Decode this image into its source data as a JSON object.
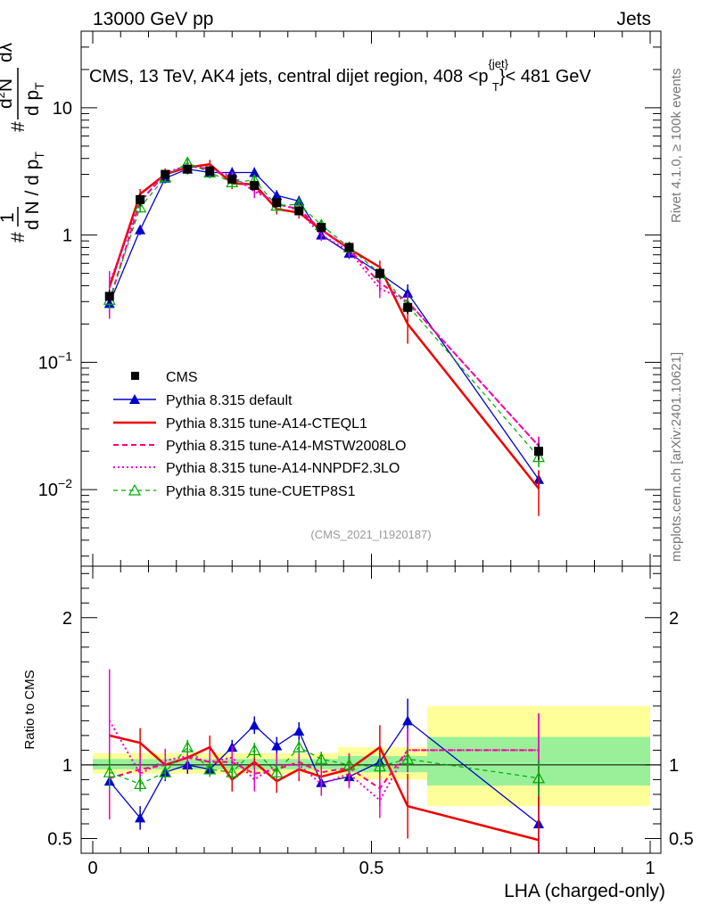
{
  "header": {
    "left": "13000 GeV pp",
    "right": "Jets"
  },
  "side_labels": {
    "rivet": "Rivet 4.1.0, ≥ 100k events",
    "mcplots": "mcplots.cern.ch [arXiv:2401.10621]"
  },
  "watermark": "(CMS_2021_I1920187)",
  "chart_data": {
    "type": "line",
    "title_parts": {
      "prefix": "CMS, 13 TeV, AK4 jets, central dijet region, 408 <p",
      "sup": "{jet}",
      "sub": "T",
      "suffix": "}< 481 GeV"
    },
    "xlabel": "LHA (charged-only)",
    "xlim": [
      0,
      1
    ],
    "x_ticks": [
      "0",
      "0.5",
      "1"
    ],
    "ylabel_parts": [
      "#",
      "1",
      "d N / d p",
      "T",
      "#",
      "d p",
      "T",
      "d",
      "2",
      "N",
      "dλ"
    ],
    "y_scale": "log",
    "ylim": [
      0.0025,
      40
    ],
    "y_ticks": [
      {
        "v": 10,
        "base": "10",
        "exp": ""
      },
      {
        "v": 1,
        "base": "1",
        "exp": ""
      },
      {
        "v": 0.1,
        "base": "10",
        "exp": "−1"
      },
      {
        "v": 0.01,
        "base": "10",
        "exp": "−2"
      }
    ],
    "x": [
      0.03,
      0.085,
      0.13,
      0.17,
      0.21,
      0.25,
      0.29,
      0.33,
      0.37,
      0.41,
      0.46,
      0.515,
      0.565,
      0.8
    ],
    "series": [
      {
        "name": "CMS",
        "style": "data",
        "color": "#000000",
        "values": [
          0.33,
          1.9,
          3.0,
          3.3,
          3.2,
          2.75,
          2.45,
          1.8,
          1.55,
          1.15,
          0.8,
          0.5,
          0.27,
          0.02
        ],
        "errors": [
          0.04,
          0.2,
          0.2,
          0.2,
          0.2,
          0.2,
          0.2,
          0.15,
          0.12,
          0.1,
          0.07,
          0.05,
          0.03,
          0.003
        ]
      },
      {
        "name": "Pythia 8.315 default",
        "style": "blue",
        "color": "#0000cc",
        "values": [
          0.29,
          1.1,
          2.8,
          3.3,
          3.1,
          3.1,
          3.1,
          2.05,
          1.85,
          1.0,
          0.72,
          0.5,
          0.35,
          0.012
        ],
        "errors": [
          0.05,
          0.1,
          0.25,
          0.3,
          0.3,
          0.3,
          0.3,
          0.2,
          0.18,
          0.1,
          0.07,
          0.05,
          0.06,
          0.002
        ]
      },
      {
        "name": "Pythia 8.315 tune-A14-CTEQL1",
        "style": "red",
        "color": "#ee0000",
        "values": [
          0.39,
          2.1,
          3.0,
          3.4,
          3.6,
          2.55,
          2.5,
          1.6,
          1.5,
          1.1,
          0.78,
          0.56,
          0.2,
          0.0102
        ],
        "errors": [
          0.07,
          0.2,
          0.25,
          0.3,
          0.3,
          0.25,
          0.25,
          0.15,
          0.15,
          0.1,
          0.08,
          0.07,
          0.06,
          0.004
        ]
      },
      {
        "name": "Pythia 8.315 tune-A14-MSTW2008LO",
        "style": "magdash",
        "color": "#ff0080",
        "values": [
          0.3,
          1.85,
          3.0,
          3.5,
          3.3,
          2.8,
          2.3,
          1.75,
          1.6,
          1.1,
          0.78,
          0.42,
          0.3,
          0.022
        ],
        "errors": [
          0.08,
          0.2,
          0.25,
          0.3,
          0.3,
          0.25,
          0.25,
          0.15,
          0.15,
          0.1,
          0.08,
          0.06,
          0.05,
          0.004
        ]
      },
      {
        "name": "Pythia 8.315 tune-A14-NNPDF2.3LO",
        "style": "magdot",
        "color": "#ee00cc",
        "values": [
          0.42,
          1.8,
          3.1,
          3.5,
          3.3,
          2.9,
          2.2,
          1.8,
          1.55,
          1.0,
          0.75,
          0.38,
          0.3,
          0.022
        ],
        "errors": [
          0.1,
          0.2,
          0.25,
          0.3,
          0.3,
          0.25,
          0.25,
          0.15,
          0.15,
          0.1,
          0.08,
          0.06,
          0.05,
          0.004
        ]
      },
      {
        "name": "Pythia 8.315 tune-CUETP8S1",
        "style": "green",
        "color": "#00aa00",
        "values": [
          0.31,
          1.65,
          2.85,
          3.7,
          3.1,
          2.6,
          2.7,
          1.7,
          1.75,
          1.2,
          0.8,
          0.5,
          0.28,
          0.018
        ],
        "errors": [
          0.05,
          0.15,
          0.25,
          0.3,
          0.3,
          0.25,
          0.25,
          0.15,
          0.15,
          0.1,
          0.08,
          0.05,
          0.04,
          0.003
        ]
      }
    ],
    "ratio": {
      "ylabel": "Ratio to CMS",
      "ylim": [
        0.4,
        2.35
      ],
      "y_ticks": [
        "0.5",
        "1",
        "2"
      ],
      "y_tick_values": [
        0.5,
        1,
        2
      ],
      "bands": [
        {
          "x0": 0.0,
          "x1": 0.44,
          "inner": [
            0.97,
            1.04
          ],
          "outer": [
            0.94,
            1.08
          ]
        },
        {
          "x0": 0.44,
          "x1": 0.6,
          "inner": [
            0.95,
            1.06
          ],
          "outer": [
            0.9,
            1.12
          ]
        },
        {
          "x0": 0.6,
          "x1": 1.0,
          "inner": [
            0.86,
            1.19
          ],
          "outer": [
            0.72,
            1.4
          ]
        }
      ],
      "series": [
        {
          "style": "blue",
          "values": [
            0.89,
            0.64,
            0.95,
            1.0,
            0.97,
            1.12,
            1.27,
            1.13,
            1.23,
            0.88,
            0.92,
            1.02,
            1.3,
            0.6
          ],
          "errors": [
            0.1,
            0.08,
            0.06,
            0.06,
            0.05,
            0.05,
            0.06,
            0.06,
            0.06,
            0.06,
            0.07,
            0.08,
            0.15,
            0.3
          ]
        },
        {
          "style": "red",
          "values": [
            1.2,
            1.15,
            1.0,
            1.05,
            1.12,
            0.9,
            1.02,
            0.89,
            0.97,
            0.92,
            0.97,
            1.12,
            0.72,
            0.49
          ],
          "errors": [
            0.2,
            0.1,
            0.08,
            0.08,
            0.08,
            0.08,
            0.08,
            0.08,
            0.08,
            0.08,
            0.1,
            0.15,
            0.22,
            0.3
          ]
        },
        {
          "style": "magdash",
          "values": [
            0.91,
            0.97,
            1.0,
            1.05,
            1.02,
            1.02,
            0.94,
            0.97,
            1.02,
            0.95,
            0.98,
            0.84,
            1.1,
            1.1
          ],
          "errors": [
            0.28,
            0.1,
            0.08,
            0.08,
            0.08,
            0.08,
            0.08,
            0.08,
            0.08,
            0.08,
            0.1,
            0.12,
            0.15,
            0.25
          ]
        },
        {
          "style": "magdot",
          "values": [
            1.3,
            0.94,
            1.03,
            1.06,
            1.02,
            1.05,
            0.9,
            1.0,
            1.0,
            0.87,
            0.94,
            0.76,
            1.1,
            1.1
          ],
          "errors": [
            0.35,
            0.1,
            0.08,
            0.08,
            0.08,
            0.08,
            0.08,
            0.08,
            0.08,
            0.08,
            0.1,
            0.12,
            0.15,
            0.25
          ]
        },
        {
          "style": "green",
          "values": [
            0.95,
            0.87,
            0.95,
            1.12,
            0.97,
            0.95,
            1.1,
            0.95,
            1.12,
            1.04,
            1.0,
            0.99,
            1.04,
            0.91
          ],
          "errors": [
            0.12,
            0.05,
            0.05,
            0.05,
            0.05,
            0.05,
            0.05,
            0.05,
            0.05,
            0.05,
            0.06,
            0.06,
            0.08,
            0.12
          ]
        }
      ]
    }
  }
}
